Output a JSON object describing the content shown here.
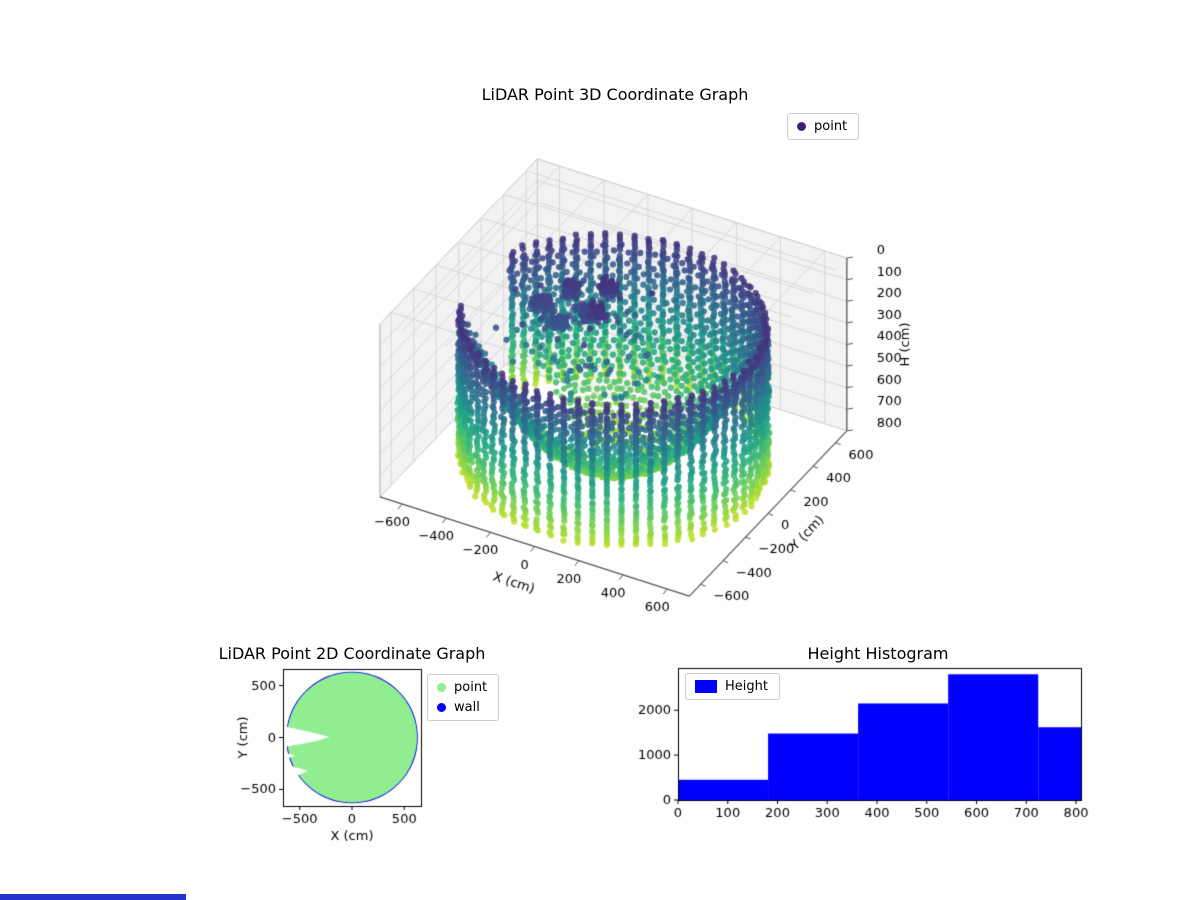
{
  "figure": {
    "background": "#ffffff",
    "footer_strip": {
      "color": "#2433cc"
    }
  },
  "chart_data": [
    {
      "id": "lidar-3d",
      "type": "scatter3d",
      "title": "LiDAR Point 3D Coordinate Graph",
      "xlabel": "X (cm)",
      "ylabel": "Y (cm)",
      "zlabel": "H (cm)",
      "xticks": [
        -600,
        -400,
        -200,
        0,
        200,
        400,
        600
      ],
      "yticks": [
        -600,
        -400,
        -200,
        0,
        200,
        400,
        600
      ],
      "zticks": [
        0,
        100,
        200,
        300,
        400,
        500,
        600,
        700,
        800
      ],
      "xlim": [
        -700,
        700
      ],
      "ylim": [
        -700,
        700
      ],
      "zlim": [
        0,
        800
      ],
      "zaxis_inverted": true,
      "colormap": "viridis",
      "legend": [
        {
          "label": "point",
          "color": "#3d2178"
        }
      ],
      "point_cloud": {
        "wall": {
          "radius": 620,
          "h_min": 130,
          "h_max": 800,
          "h_step": 16,
          "n_angles": 66,
          "gap_angles_deg": [
            [
              163,
              200
            ]
          ]
        },
        "bowl": {
          "radius_max": 590,
          "h_min": 175,
          "h_max": 795,
          "levels": 30,
          "n_angles": 66
        },
        "clusters": {
          "centers": [
            [
              -280,
              170,
              180
            ],
            [
              -170,
              90,
              210
            ],
            [
              -90,
              40,
              150
            ],
            [
              -260,
              20,
              240
            ],
            [
              -140,
              230,
              160
            ],
            [
              -350,
              60,
              200
            ]
          ],
          "points_per_cluster": 55,
          "spread_xy": 45,
          "spread_h": 40
        },
        "sparse": {
          "count": 70,
          "x_range": [
            -470,
            120
          ],
          "y_range": [
            -220,
            320
          ],
          "h_range": [
            140,
            450
          ]
        }
      }
    },
    {
      "id": "lidar-2d",
      "type": "scatter",
      "title": "LiDAR Point 2D Coordinate Graph",
      "xlabel": "X (cm)",
      "ylabel": "Y (cm)",
      "xticks": [
        -500,
        0,
        500
      ],
      "yticks": [
        -500,
        0,
        500
      ],
      "xlim": [
        -660,
        660
      ],
      "ylim": [
        -660,
        660
      ],
      "legend": [
        {
          "label": "point",
          "color": "#90ee90"
        },
        {
          "label": "wall",
          "color": "#0000ff"
        }
      ],
      "disc": {
        "radius": 622,
        "color": "#90ee90",
        "wall_radius": 620,
        "wall_color": "#0000ff"
      },
      "notches": [
        [
          [
            -660,
            110
          ],
          [
            -370,
            45
          ],
          [
            -215,
            5
          ],
          [
            -370,
            -40
          ],
          [
            -660,
            -95
          ]
        ],
        [
          [
            -660,
            -250
          ],
          [
            -420,
            -320
          ],
          [
            -660,
            -430
          ]
        ],
        [
          [
            -660,
            -140
          ],
          [
            -540,
            -175
          ],
          [
            -660,
            -215
          ]
        ]
      ]
    },
    {
      "id": "height-histogram",
      "type": "histogram",
      "title": "Height Histogram",
      "legend": [
        {
          "label": "Height",
          "color": "#0000ff"
        }
      ],
      "bar_color": "#0000ff",
      "bin_edges": [
        0,
        181,
        362,
        543,
        724,
        810
      ],
      "counts": [
        450,
        1480,
        2150,
        2800,
        1620
      ],
      "xticks": [
        0,
        100,
        200,
        300,
        400,
        500,
        600,
        700,
        800
      ],
      "yticks": [
        0,
        1000,
        2000
      ],
      "xlim": [
        0,
        810
      ],
      "ylim": [
        0,
        2940
      ]
    }
  ]
}
